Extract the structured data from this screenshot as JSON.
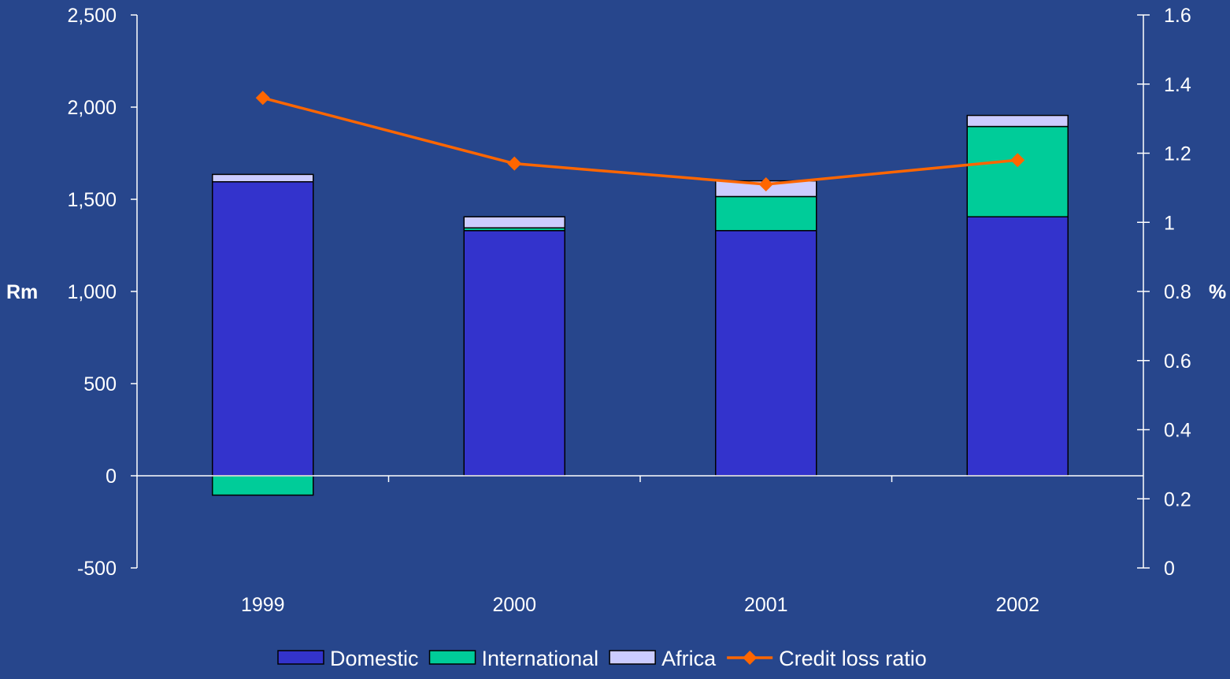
{
  "colors": {
    "background": "#27468C",
    "axis": "#FFFFFF",
    "text": "#FFFFFF",
    "domestic": "#3333CC",
    "international": "#00CC99",
    "africa": "#CCCCFF",
    "credit_loss_ratio": "#FF6600",
    "bar_outline": "#000000"
  },
  "chart_data": {
    "type": "bar",
    "stacked": true,
    "categories": [
      "1999",
      "2000",
      "2001",
      "2002"
    ],
    "series": [
      {
        "name": "Domestic",
        "values": [
          1595,
          1330,
          1330,
          1405
        ],
        "axis": "left",
        "color": "#3333CC"
      },
      {
        "name": "International",
        "values": [
          -105,
          15,
          185,
          490
        ],
        "axis": "left",
        "color": "#00CC99"
      },
      {
        "name": "Africa",
        "values": [
          40,
          60,
          85,
          60
        ],
        "axis": "left",
        "color": "#CCCCFF"
      },
      {
        "name": "Credit loss ratio",
        "type": "line",
        "marker": "diamond",
        "values": [
          1.36,
          1.17,
          1.11,
          1.18
        ],
        "axis": "right",
        "color": "#FF6600"
      }
    ],
    "ylabel": "Rm",
    "ylim": [
      -500,
      2500
    ],
    "yticks": [
      -500,
      0,
      500,
      1000,
      1500,
      2000,
      2500
    ],
    "ytick_labels": [
      "-500",
      "0",
      "500",
      "1,000",
      "1,500",
      "2,000",
      "2,500"
    ],
    "y2label": "%",
    "y2lim": [
      0,
      1.6
    ],
    "y2ticks": [
      0,
      0.2,
      0.4,
      0.6,
      0.8,
      1,
      1.2,
      1.4,
      1.6
    ],
    "y2tick_labels": [
      "0",
      "0.2",
      "0.4",
      "0.6",
      "0.8",
      "1",
      "1.2",
      "1.4",
      "1.6"
    ],
    "grid": false,
    "legend_position": "bottom"
  },
  "legend": {
    "items": [
      {
        "label": "Domestic",
        "kind": "box",
        "color": "#3333CC"
      },
      {
        "label": "International",
        "kind": "box",
        "color": "#00CC99"
      },
      {
        "label": "Africa",
        "kind": "box",
        "color": "#CCCCFF"
      },
      {
        "label": "Credit loss ratio",
        "kind": "line",
        "color": "#FF6600"
      }
    ]
  }
}
